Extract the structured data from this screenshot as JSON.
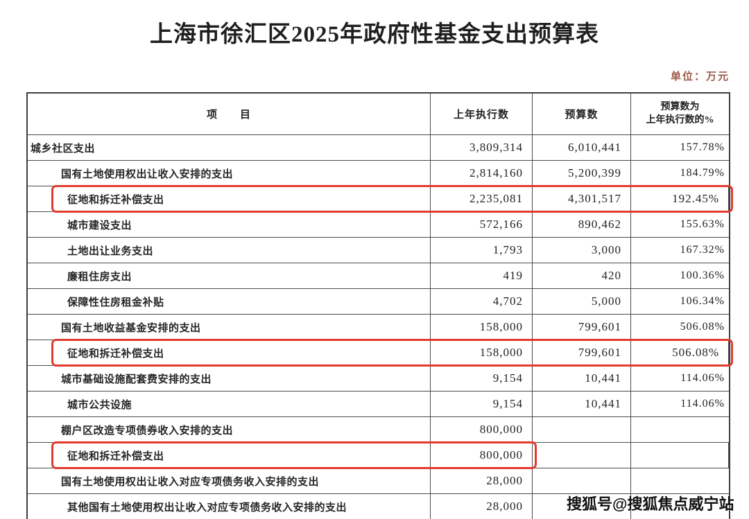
{
  "page": {
    "title": "上海市徐汇区2025年政府性基金支出预算表",
    "unit_label": "单位：万元",
    "watermark": "搜狐号@搜狐焦点威宁站",
    "highlight_color": "#e23b2e"
  },
  "table": {
    "headers": {
      "item": "项　　目",
      "prev_year": "上年执行数",
      "budget": "预算数",
      "ratio_line1": "预算数为",
      "ratio_line2": "上年执行数的%"
    },
    "rows": [
      {
        "item": "城乡社区支出",
        "indent": 0,
        "prev": "3,809,314",
        "budget": "6,010,441",
        "ratio": "157.78%",
        "highlight": "none"
      },
      {
        "item": "国有土地使用权出让收入安排的支出",
        "indent": 1,
        "prev": "2,814,160",
        "budget": "5,200,399",
        "ratio": "184.79%",
        "highlight": "none"
      },
      {
        "item": "征地和拆迁补偿支出",
        "indent": 2,
        "prev": "2,235,081",
        "budget": "4,301,517",
        "ratio": "192.45%",
        "highlight": "full"
      },
      {
        "item": "城市建设支出",
        "indent": 2,
        "prev": "572,166",
        "budget": "890,462",
        "ratio": "155.63%",
        "highlight": "none"
      },
      {
        "item": "土地出让业务支出",
        "indent": 2,
        "prev": "1,793",
        "budget": "3,000",
        "ratio": "167.32%",
        "highlight": "none"
      },
      {
        "item": "廉租住房支出",
        "indent": 2,
        "prev": "419",
        "budget": "420",
        "ratio": "100.36%",
        "highlight": "none"
      },
      {
        "item": "保障性住房租金补贴",
        "indent": 2,
        "prev": "4,702",
        "budget": "5,000",
        "ratio": "106.34%",
        "highlight": "none"
      },
      {
        "item": "国有土地收益基金安排的支出",
        "indent": 1,
        "prev": "158,000",
        "budget": "799,601",
        "ratio": "506.08%",
        "highlight": "none"
      },
      {
        "item": "征地和拆迁补偿支出",
        "indent": 2,
        "prev": "158,000",
        "budget": "799,601",
        "ratio": "506.08%",
        "highlight": "full"
      },
      {
        "item": "城市基础设施配套费安排的支出",
        "indent": 1,
        "prev": "9,154",
        "budget": "10,441",
        "ratio": "114.06%",
        "highlight": "none"
      },
      {
        "item": "城市公共设施",
        "indent": 2,
        "prev": "9,154",
        "budget": "10,441",
        "ratio": "114.06%",
        "highlight": "none"
      },
      {
        "item": "棚户区改造专项债券收入安排的支出",
        "indent": 1,
        "prev": "800,000",
        "budget": "",
        "ratio": "",
        "highlight": "none"
      },
      {
        "item": "征地和拆迁补偿支出",
        "indent": 2,
        "prev": "800,000",
        "budget": "",
        "ratio": "",
        "highlight": "partial"
      },
      {
        "item": "国有土地使用权出让收入对应专项债务收入安排的支出",
        "indent": 1,
        "prev": "28,000",
        "budget": "",
        "ratio": "",
        "highlight": "none"
      },
      {
        "item": "其他国有土地使用权出让收入对应专项债务收入安排的支出",
        "indent": 2,
        "prev": "28,000",
        "budget": "",
        "ratio": "",
        "highlight": "none"
      }
    ]
  }
}
